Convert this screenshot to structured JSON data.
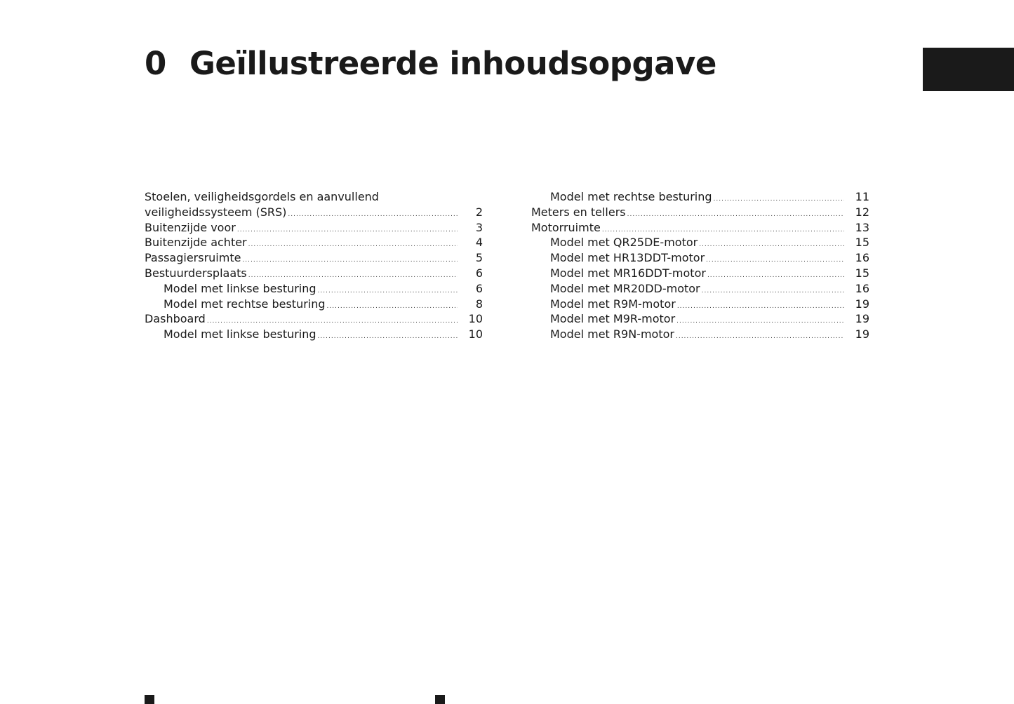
{
  "header": {
    "chapter_number": "0",
    "title": "Geïllustreerde inhoudsopgave"
  },
  "toc_left": [
    {
      "label": "Stoelen, veiligheidsgordels en aanvullend",
      "page": "",
      "level": 0
    },
    {
      "label": "veiligheidssysteem (SRS)",
      "page": "2",
      "level": 0
    },
    {
      "label": "Buitenzijde voor",
      "page": "3",
      "level": 0
    },
    {
      "label": "Buitenzijde achter",
      "page": "4",
      "level": 0
    },
    {
      "label": "Passagiersruimte",
      "page": "5",
      "level": 0
    },
    {
      "label": "Bestuurdersplaats",
      "page": "6",
      "level": 0
    },
    {
      "label": "Model met linkse besturing",
      "page": "6",
      "level": 1
    },
    {
      "label": "Model met rechtse besturing",
      "page": "8",
      "level": 1
    },
    {
      "label": "Dashboard",
      "page": "10",
      "level": 0
    },
    {
      "label": "Model met linkse besturing",
      "page": "10",
      "level": 1
    }
  ],
  "toc_right": [
    {
      "label": "Model met rechtse besturing",
      "page": "11",
      "level": 1
    },
    {
      "label": "Meters en tellers",
      "page": "12",
      "level": 0
    },
    {
      "label": "Motorruimte",
      "page": "13",
      "level": 0
    },
    {
      "label": "Model met QR25DE-motor",
      "page": "15",
      "level": 1
    },
    {
      "label": "Model met HR13DDT-motor",
      "page": "16",
      "level": 1
    },
    {
      "label": "Model met MR16DDT-motor",
      "page": "15",
      "level": 1
    },
    {
      "label": "Model met MR20DD-motor",
      "page": "16",
      "level": 1
    },
    {
      "label": "Model met R9M-motor",
      "page": "19",
      "level": 1
    },
    {
      "label": "Model met M9R-motor",
      "page": "19",
      "level": 1
    },
    {
      "label": "Model met R9N-motor",
      "page": "19",
      "level": 1
    }
  ]
}
